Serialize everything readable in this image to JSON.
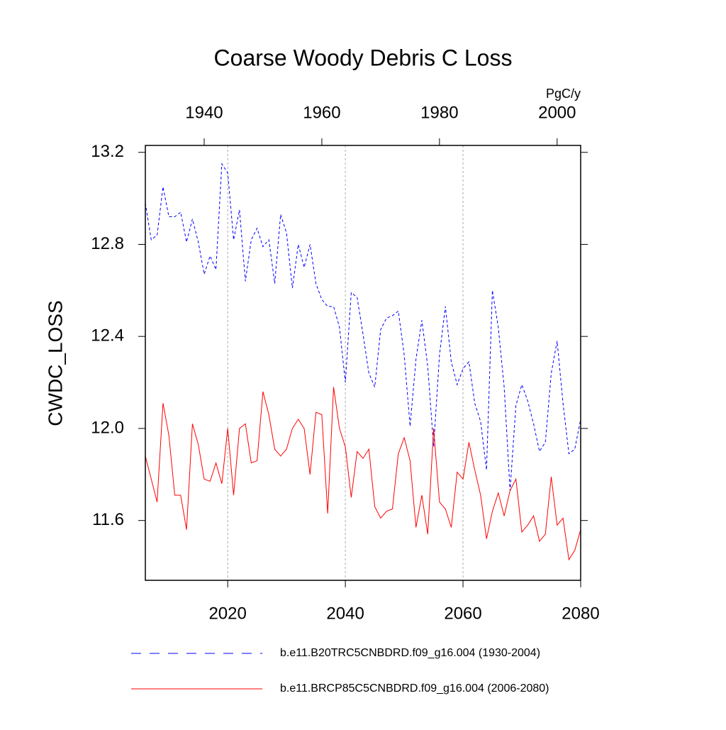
{
  "chart_data": {
    "type": "line",
    "title": "Coarse Woody Debris C Loss",
    "ylabel": "CWDC_LOSS",
    "units": "PgC/y",
    "xlim": [
      2006,
      2080
    ],
    "xticks": [
      2020,
      2040,
      2060,
      2080
    ],
    "xtick_color": "#ff0000",
    "x2lim": [
      1930,
      2004
    ],
    "x2ticks": [
      1940,
      1960,
      1980,
      2000
    ],
    "x2tick_color": "#0000ff",
    "ylim": [
      11.34,
      13.23
    ],
    "yticks": [
      11.6,
      {
        "value": 12,
        "label": "12.0"
      },
      12.4,
      12.8,
      13.2
    ],
    "grid": true,
    "legend": "bottom",
    "series": [
      {
        "name": "b.e11.B20TRC5CNBDRD.f09_g16.004 (1930-2004)",
        "color": "#0000ff",
        "linestyle": "dashed",
        "axis": "x2",
        "x": [
          1930,
          1931,
          1932,
          1933,
          1934,
          1935,
          1936,
          1937,
          1938,
          1939,
          1940,
          1941,
          1942,
          1943,
          1944,
          1945,
          1946,
          1947,
          1948,
          1949,
          1950,
          1951,
          1952,
          1953,
          1954,
          1955,
          1956,
          1957,
          1958,
          1959,
          1960,
          1961,
          1962,
          1963,
          1964,
          1965,
          1966,
          1967,
          1968,
          1969,
          1970,
          1971,
          1972,
          1973,
          1974,
          1975,
          1976,
          1977,
          1978,
          1979,
          1980,
          1981,
          1982,
          1983,
          1984,
          1985,
          1986,
          1987,
          1988,
          1989,
          1990,
          1991,
          1992,
          1993,
          1994,
          1995,
          1996,
          1997,
          1998,
          1999,
          2000,
          2001,
          2002,
          2003,
          2004
        ],
        "values": [
          12.98,
          12.82,
          12.84,
          13.05,
          12.92,
          12.92,
          12.94,
          12.81,
          12.91,
          12.81,
          12.67,
          12.75,
          12.69,
          13.15,
          13.11,
          12.82,
          12.95,
          12.64,
          12.82,
          12.87,
          12.79,
          12.82,
          12.63,
          12.93,
          12.85,
          12.61,
          12.8,
          12.7,
          12.8,
          12.63,
          12.56,
          12.53,
          12.53,
          12.44,
          12.2,
          12.59,
          12.57,
          12.41,
          12.24,
          12.18,
          12.43,
          12.48,
          12.49,
          12.51,
          12.32,
          12.01,
          12.3,
          12.47,
          12.27,
          11.92,
          12.32,
          12.53,
          12.29,
          12.19,
          12.26,
          12.29,
          12.11,
          12.03,
          11.82,
          12.6,
          12.44,
          12.18,
          11.73,
          12.1,
          12.19,
          12.12,
          12.02,
          11.9,
          11.94,
          12.24,
          12.38,
          12.11,
          11.89,
          11.91,
          12.04
        ]
      },
      {
        "name": "b.e11.BRCP85C5CNBDRD.f09_g16.004 (2006-2080)",
        "color": "#ff0000",
        "linestyle": "solid",
        "axis": "x",
        "x": [
          2006,
          2007,
          2008,
          2009,
          2010,
          2011,
          2012,
          2013,
          2014,
          2015,
          2016,
          2017,
          2018,
          2019,
          2020,
          2021,
          2022,
          2023,
          2024,
          2025,
          2026,
          2027,
          2028,
          2029,
          2030,
          2031,
          2032,
          2033,
          2034,
          2035,
          2036,
          2037,
          2038,
          2039,
          2040,
          2041,
          2042,
          2043,
          2044,
          2045,
          2046,
          2047,
          2048,
          2049,
          2050,
          2051,
          2052,
          2053,
          2054,
          2055,
          2056,
          2057,
          2058,
          2059,
          2060,
          2061,
          2062,
          2063,
          2064,
          2065,
          2066,
          2067,
          2068,
          2069,
          2070,
          2071,
          2072,
          2073,
          2074,
          2075,
          2076,
          2077,
          2078,
          2079,
          2080
        ],
        "values": [
          11.88,
          11.78,
          11.68,
          12.11,
          11.97,
          11.71,
          11.71,
          11.56,
          12.02,
          11.93,
          11.78,
          11.77,
          11.85,
          11.76,
          12.0,
          11.71,
          12.0,
          12.02,
          11.85,
          11.86,
          12.16,
          12.06,
          11.91,
          11.88,
          11.91,
          12.0,
          12.04,
          12.0,
          11.8,
          12.07,
          12.06,
          11.63,
          12.18,
          12.0,
          11.92,
          11.7,
          11.9,
          11.87,
          11.91,
          11.66,
          11.61,
          11.64,
          11.65,
          11.89,
          11.96,
          11.86,
          11.57,
          11.71,
          11.54,
          12.0,
          11.68,
          11.65,
          11.57,
          11.81,
          11.78,
          11.94,
          11.82,
          11.71,
          11.52,
          11.64,
          11.72,
          11.62,
          11.73,
          11.78,
          11.55,
          11.58,
          11.62,
          11.51,
          11.54,
          11.79,
          11.58,
          11.61,
          11.43,
          11.47,
          11.56
        ]
      }
    ]
  }
}
